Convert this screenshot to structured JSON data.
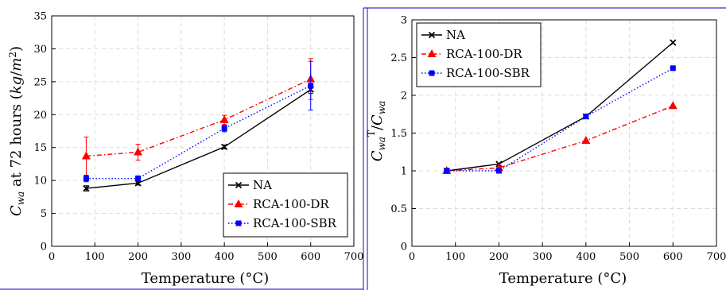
{
  "chart_data": [
    {
      "type": "line",
      "xlabel": "Temperature (°C)",
      "ylabel": "C_wa at 72 hours (kg/m²)",
      "xlim": [
        0,
        700
      ],
      "ylim": [
        0,
        35
      ],
      "xticks": [
        0,
        100,
        200,
        300,
        400,
        500,
        600,
        700
      ],
      "yticks": [
        0,
        5,
        10,
        15,
        20,
        25,
        30,
        35
      ],
      "grid": true,
      "legend_position": "bottom-right",
      "series": [
        {
          "name": "NA",
          "color": "#000000",
          "marker": "x",
          "dash": "solid",
          "points": [
            {
              "x": 80,
              "y": 8.8,
              "err": 0.4
            },
            {
              "x": 200,
              "y": 9.6,
              "err": 0.3
            },
            {
              "x": 400,
              "y": 15.1,
              "err": 0.3
            },
            {
              "x": 600,
              "y": 23.8,
              "err": 0.6
            }
          ]
        },
        {
          "name": "RCA-100-DR",
          "color": "#ff0000",
          "marker": "triangle",
          "dash": "dashdot",
          "points": [
            {
              "x": 80,
              "y": 13.7,
              "err": 2.9
            },
            {
              "x": 200,
              "y": 14.3,
              "err": 1.2
            },
            {
              "x": 400,
              "y": 19.2,
              "err": 0.7
            },
            {
              "x": 600,
              "y": 25.4,
              "err": 3.1
            }
          ]
        },
        {
          "name": "RCA-100-SBR",
          "color": "#0000ff",
          "marker": "square",
          "dash": "dotted",
          "points": [
            {
              "x": 80,
              "y": 10.3,
              "err": 0.5
            },
            {
              "x": 200,
              "y": 10.3,
              "err": 0.4
            },
            {
              "x": 400,
              "y": 17.9,
              "err": 0.5
            },
            {
              "x": 600,
              "y": 24.4,
              "err": 3.7
            }
          ]
        }
      ]
    },
    {
      "type": "line",
      "xlabel": "Temperature (°C)",
      "ylabel": "C_wa^T / C_wa",
      "xlim": [
        0,
        700
      ],
      "ylim": [
        0,
        3
      ],
      "xticks": [
        0,
        100,
        200,
        300,
        400,
        500,
        600,
        700
      ],
      "yticks": [
        0,
        0.5,
        1,
        1.5,
        2,
        2.5,
        3
      ],
      "grid": true,
      "legend_position": "top-left",
      "series": [
        {
          "name": "NA",
          "color": "#000000",
          "marker": "x",
          "dash": "solid",
          "points": [
            {
              "x": 80,
              "y": 1.0
            },
            {
              "x": 200,
              "y": 1.09
            },
            {
              "x": 400,
              "y": 1.72
            },
            {
              "x": 600,
              "y": 2.7
            }
          ]
        },
        {
          "name": "RCA-100-DR",
          "color": "#ff0000",
          "marker": "triangle",
          "dash": "dashdot",
          "points": [
            {
              "x": 80,
              "y": 1.0
            },
            {
              "x": 200,
              "y": 1.04
            },
            {
              "x": 400,
              "y": 1.4
            },
            {
              "x": 600,
              "y": 1.86
            }
          ]
        },
        {
          "name": "RCA-100-SBR",
          "color": "#0000ff",
          "marker": "square",
          "dash": "dotted",
          "points": [
            {
              "x": 80,
              "y": 1.0
            },
            {
              "x": 200,
              "y": 1.0
            },
            {
              "x": 400,
              "y": 1.72
            },
            {
              "x": 600,
              "y": 2.36
            }
          ]
        }
      ]
    }
  ]
}
